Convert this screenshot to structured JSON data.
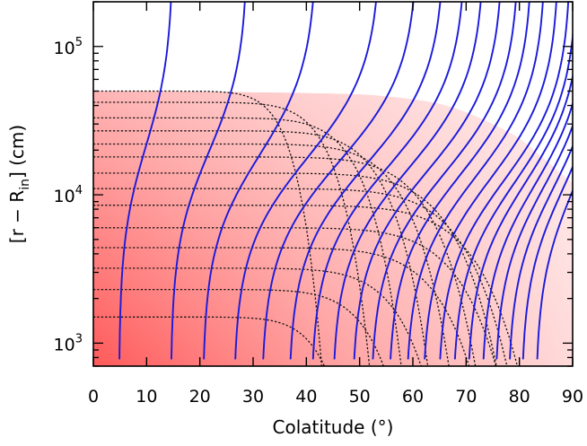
{
  "chart_data": {
    "type": "contour",
    "xlabel": "Colatitude (°)",
    "ylabel": {
      "prefix": "[r − R",
      "subscript": "in",
      "suffix": "] (cm)"
    },
    "xlim": [
      0,
      90
    ],
    "ylim": [
      700,
      200000
    ],
    "yscale": "log",
    "x_ticks": [
      0,
      10,
      20,
      30,
      40,
      50,
      60,
      70,
      80,
      90
    ],
    "x_tick_labels": [
      "0",
      "10",
      "20",
      "30",
      "40",
      "50",
      "60",
      "70",
      "80",
      "90"
    ],
    "y_ticks": [
      {
        "value": 1000,
        "base": "10",
        "exponent": "3"
      },
      {
        "value": 10000,
        "base": "10",
        "exponent": "4"
      },
      {
        "value": 100000,
        "base": "10",
        "exponent": "5"
      }
    ],
    "shaded_region": {
      "description": "red density gradient, darker toward small colatitude and small r",
      "top_boundary": [
        [
          0,
          50000
        ],
        [
          10,
          50000
        ],
        [
          20,
          49500
        ],
        [
          30,
          49000
        ],
        [
          40,
          48500
        ],
        [
          50,
          47500
        ],
        [
          55,
          46000
        ],
        [
          60,
          44000
        ],
        [
          65,
          41000
        ],
        [
          70,
          36000
        ],
        [
          75,
          30000
        ],
        [
          80,
          24000
        ],
        [
          85,
          17000
        ],
        [
          90,
          12000
        ]
      ]
    },
    "solid_field_lines": {
      "color": "#1a1adc",
      "count": 21,
      "base_x": [
        4.8,
        14.5,
        20.5,
        26.3,
        31.5,
        36.6,
        40.8,
        44.8,
        48.5,
        52,
        55.3,
        58.6,
        61.7,
        64.6,
        67.4,
        70.1,
        72.8,
        75.3,
        77.8,
        80.3,
        83
      ],
      "top_x": [
        15,
        29,
        42,
        54,
        61,
        66,
        70,
        73.5,
        77,
        80,
        82.5,
        85,
        87.5,
        89.7,
        91,
        92,
        93,
        94,
        95,
        96,
        97
      ]
    },
    "dotted_contours": [
      {
        "x0": 0,
        "x1": 43,
        "r0": 50000
      },
      {
        "x0": 0,
        "x1": 52,
        "r0": 42000
      },
      {
        "x0": 0,
        "x1": 58,
        "r0": 33000
      },
      {
        "x0": 0,
        "x1": 63,
        "r0": 27000
      },
      {
        "x0": 0,
        "x1": 67,
        "r0": 22000
      },
      {
        "x0": 0,
        "x1": 72,
        "r0": 18000
      },
      {
        "x0": 0,
        "x1": 76,
        "r0": 14000
      },
      {
        "x0": 0,
        "x1": 78,
        "r0": 11000
      },
      {
        "x0": 0,
        "x1": 80,
        "r0": 8500
      },
      {
        "x0": 0,
        "x1": 76,
        "r0": 6000
      },
      {
        "x0": 0,
        "x1": 71,
        "r0": 4400
      },
      {
        "x0": 0,
        "x1": 62,
        "r0": 3200
      },
      {
        "x0": 0,
        "x1": 55,
        "r0": 2300
      },
      {
        "x0": 0,
        "x1": 44,
        "r0": 1500
      }
    ]
  }
}
